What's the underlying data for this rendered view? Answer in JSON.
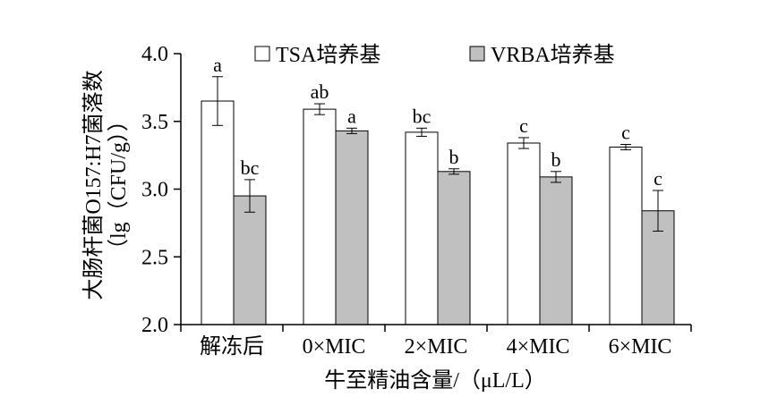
{
  "chart_data": {
    "type": "bar",
    "title": "",
    "xlabel": "牛至精油含量/（μL/L）",
    "ylabel_line1": "大肠杆菌O157:H7菌落数",
    "ylabel_line2": "（lg（CFU/g））",
    "ylim": [
      2.0,
      4.0
    ],
    "yticks": [
      "2.0",
      "2.5",
      "3.0",
      "3.5",
      "4.0"
    ],
    "ytick_values": [
      2.0,
      2.5,
      3.0,
      3.5,
      4.0
    ],
    "categories": [
      "解冻后",
      "0×MIC",
      "2×MIC",
      "4×MIC",
      "6×MIC"
    ],
    "legend_position": "top",
    "grid": false,
    "series": [
      {
        "name": "TSA培养基",
        "color": "#ffffff",
        "values": [
          3.65,
          3.59,
          3.42,
          3.34,
          3.31
        ],
        "errors": [
          0.18,
          0.04,
          0.03,
          0.04,
          0.02
        ],
        "letters": [
          "a",
          "ab",
          "bc",
          "c",
          "c"
        ]
      },
      {
        "name": "VRBA培养基",
        "color": "#c0c0c0",
        "values": [
          2.95,
          3.43,
          3.13,
          3.09,
          2.84
        ],
        "errors": [
          0.12,
          0.02,
          0.02,
          0.04,
          0.15
        ],
        "letters": [
          "bc",
          "a",
          "b",
          "b",
          "c"
        ]
      }
    ]
  }
}
